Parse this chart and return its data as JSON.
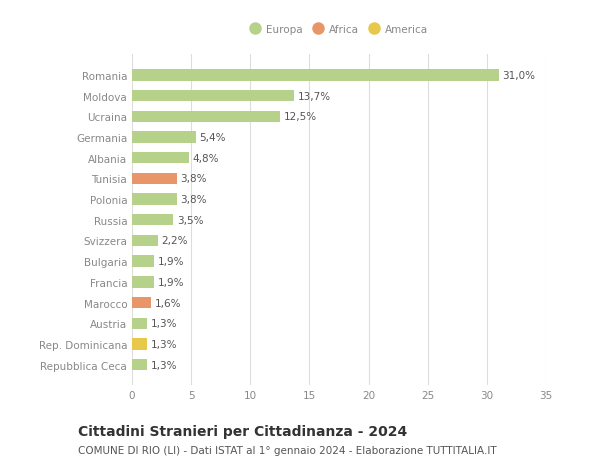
{
  "categories": [
    "Repubblica Ceca",
    "Rep. Dominicana",
    "Austria",
    "Marocco",
    "Francia",
    "Bulgaria",
    "Svizzera",
    "Russia",
    "Polonia",
    "Tunisia",
    "Albania",
    "Germania",
    "Ucraina",
    "Moldova",
    "Romania"
  ],
  "values": [
    1.3,
    1.3,
    1.3,
    1.6,
    1.9,
    1.9,
    2.2,
    3.5,
    3.8,
    3.8,
    4.8,
    5.4,
    12.5,
    13.7,
    31.0
  ],
  "labels": [
    "1,3%",
    "1,3%",
    "1,3%",
    "1,6%",
    "1,9%",
    "1,9%",
    "2,2%",
    "3,5%",
    "3,8%",
    "3,8%",
    "4,8%",
    "5,4%",
    "12,5%",
    "13,7%",
    "31,0%"
  ],
  "colors": [
    "#b5d18a",
    "#e8c84a",
    "#b5d18a",
    "#e8956a",
    "#b5d18a",
    "#b5d18a",
    "#b5d18a",
    "#b5d18a",
    "#b5d18a",
    "#e8956a",
    "#b5d18a",
    "#b5d18a",
    "#b5d18a",
    "#b5d18a",
    "#b5d18a"
  ],
  "legend_labels": [
    "Europa",
    "Africa",
    "America"
  ],
  "legend_colors": [
    "#b5d18a",
    "#e8956a",
    "#e8c84a"
  ],
  "title": "Cittadini Stranieri per Cittadinanza - 2024",
  "subtitle": "COMUNE DI RIO (LI) - Dati ISTAT al 1° gennaio 2024 - Elaborazione TUTTITALIA.IT",
  "xlim": [
    0,
    35
  ],
  "xticks": [
    0,
    5,
    10,
    15,
    20,
    25,
    30,
    35
  ],
  "bg_color": "#ffffff",
  "grid_color": "#dddddd",
  "bar_height": 0.55,
  "title_fontsize": 10,
  "subtitle_fontsize": 7.5,
  "label_fontsize": 7.5,
  "tick_fontsize": 7.5,
  "value_color": "#555555",
  "tick_color": "#888888"
}
